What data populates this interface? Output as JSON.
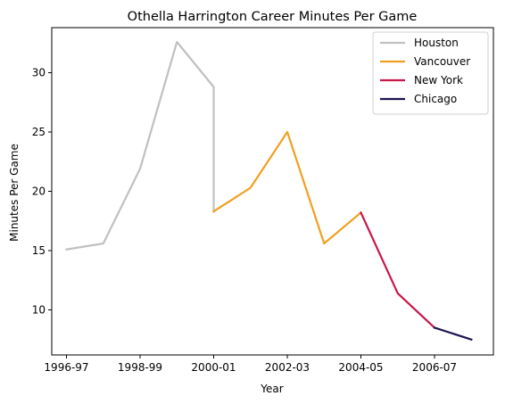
{
  "chart_data": {
    "type": "line",
    "title": "Othella Harrington Career Minutes Per Game",
    "xlabel": "Year",
    "ylabel": "Minutes Per Game",
    "x_tick_labels": [
      "1996-97",
      "1998-99",
      "2000-01",
      "2002-03",
      "2004-05",
      "2006-07"
    ],
    "y_ticks": [
      10,
      15,
      20,
      25,
      30
    ],
    "xlim": [
      -0.4,
      11.6
    ],
    "ylim": [
      6.2,
      33.8
    ],
    "grid": false,
    "legend_position": "top-right",
    "series": [
      {
        "name": "Houston",
        "color": "#c0c0c0",
        "x": [
          0,
          1,
          2,
          3,
          4,
          4
        ],
        "y": [
          15.1,
          15.6,
          21.9,
          32.6,
          28.8,
          18.3
        ]
      },
      {
        "name": "Vancouver",
        "color": "#f0a020",
        "x": [
          4,
          5,
          6,
          7,
          8
        ],
        "y": [
          18.3,
          20.3,
          25.0,
          15.6,
          18.2
        ]
      },
      {
        "name": "New York",
        "color": "#c8174a",
        "x": [
          8,
          9,
          10
        ],
        "y": [
          18.2,
          11.4,
          8.5
        ]
      },
      {
        "name": "Chicago",
        "color": "#1c1450",
        "x": [
          10,
          11
        ],
        "y": [
          8.5,
          7.5
        ]
      }
    ]
  }
}
